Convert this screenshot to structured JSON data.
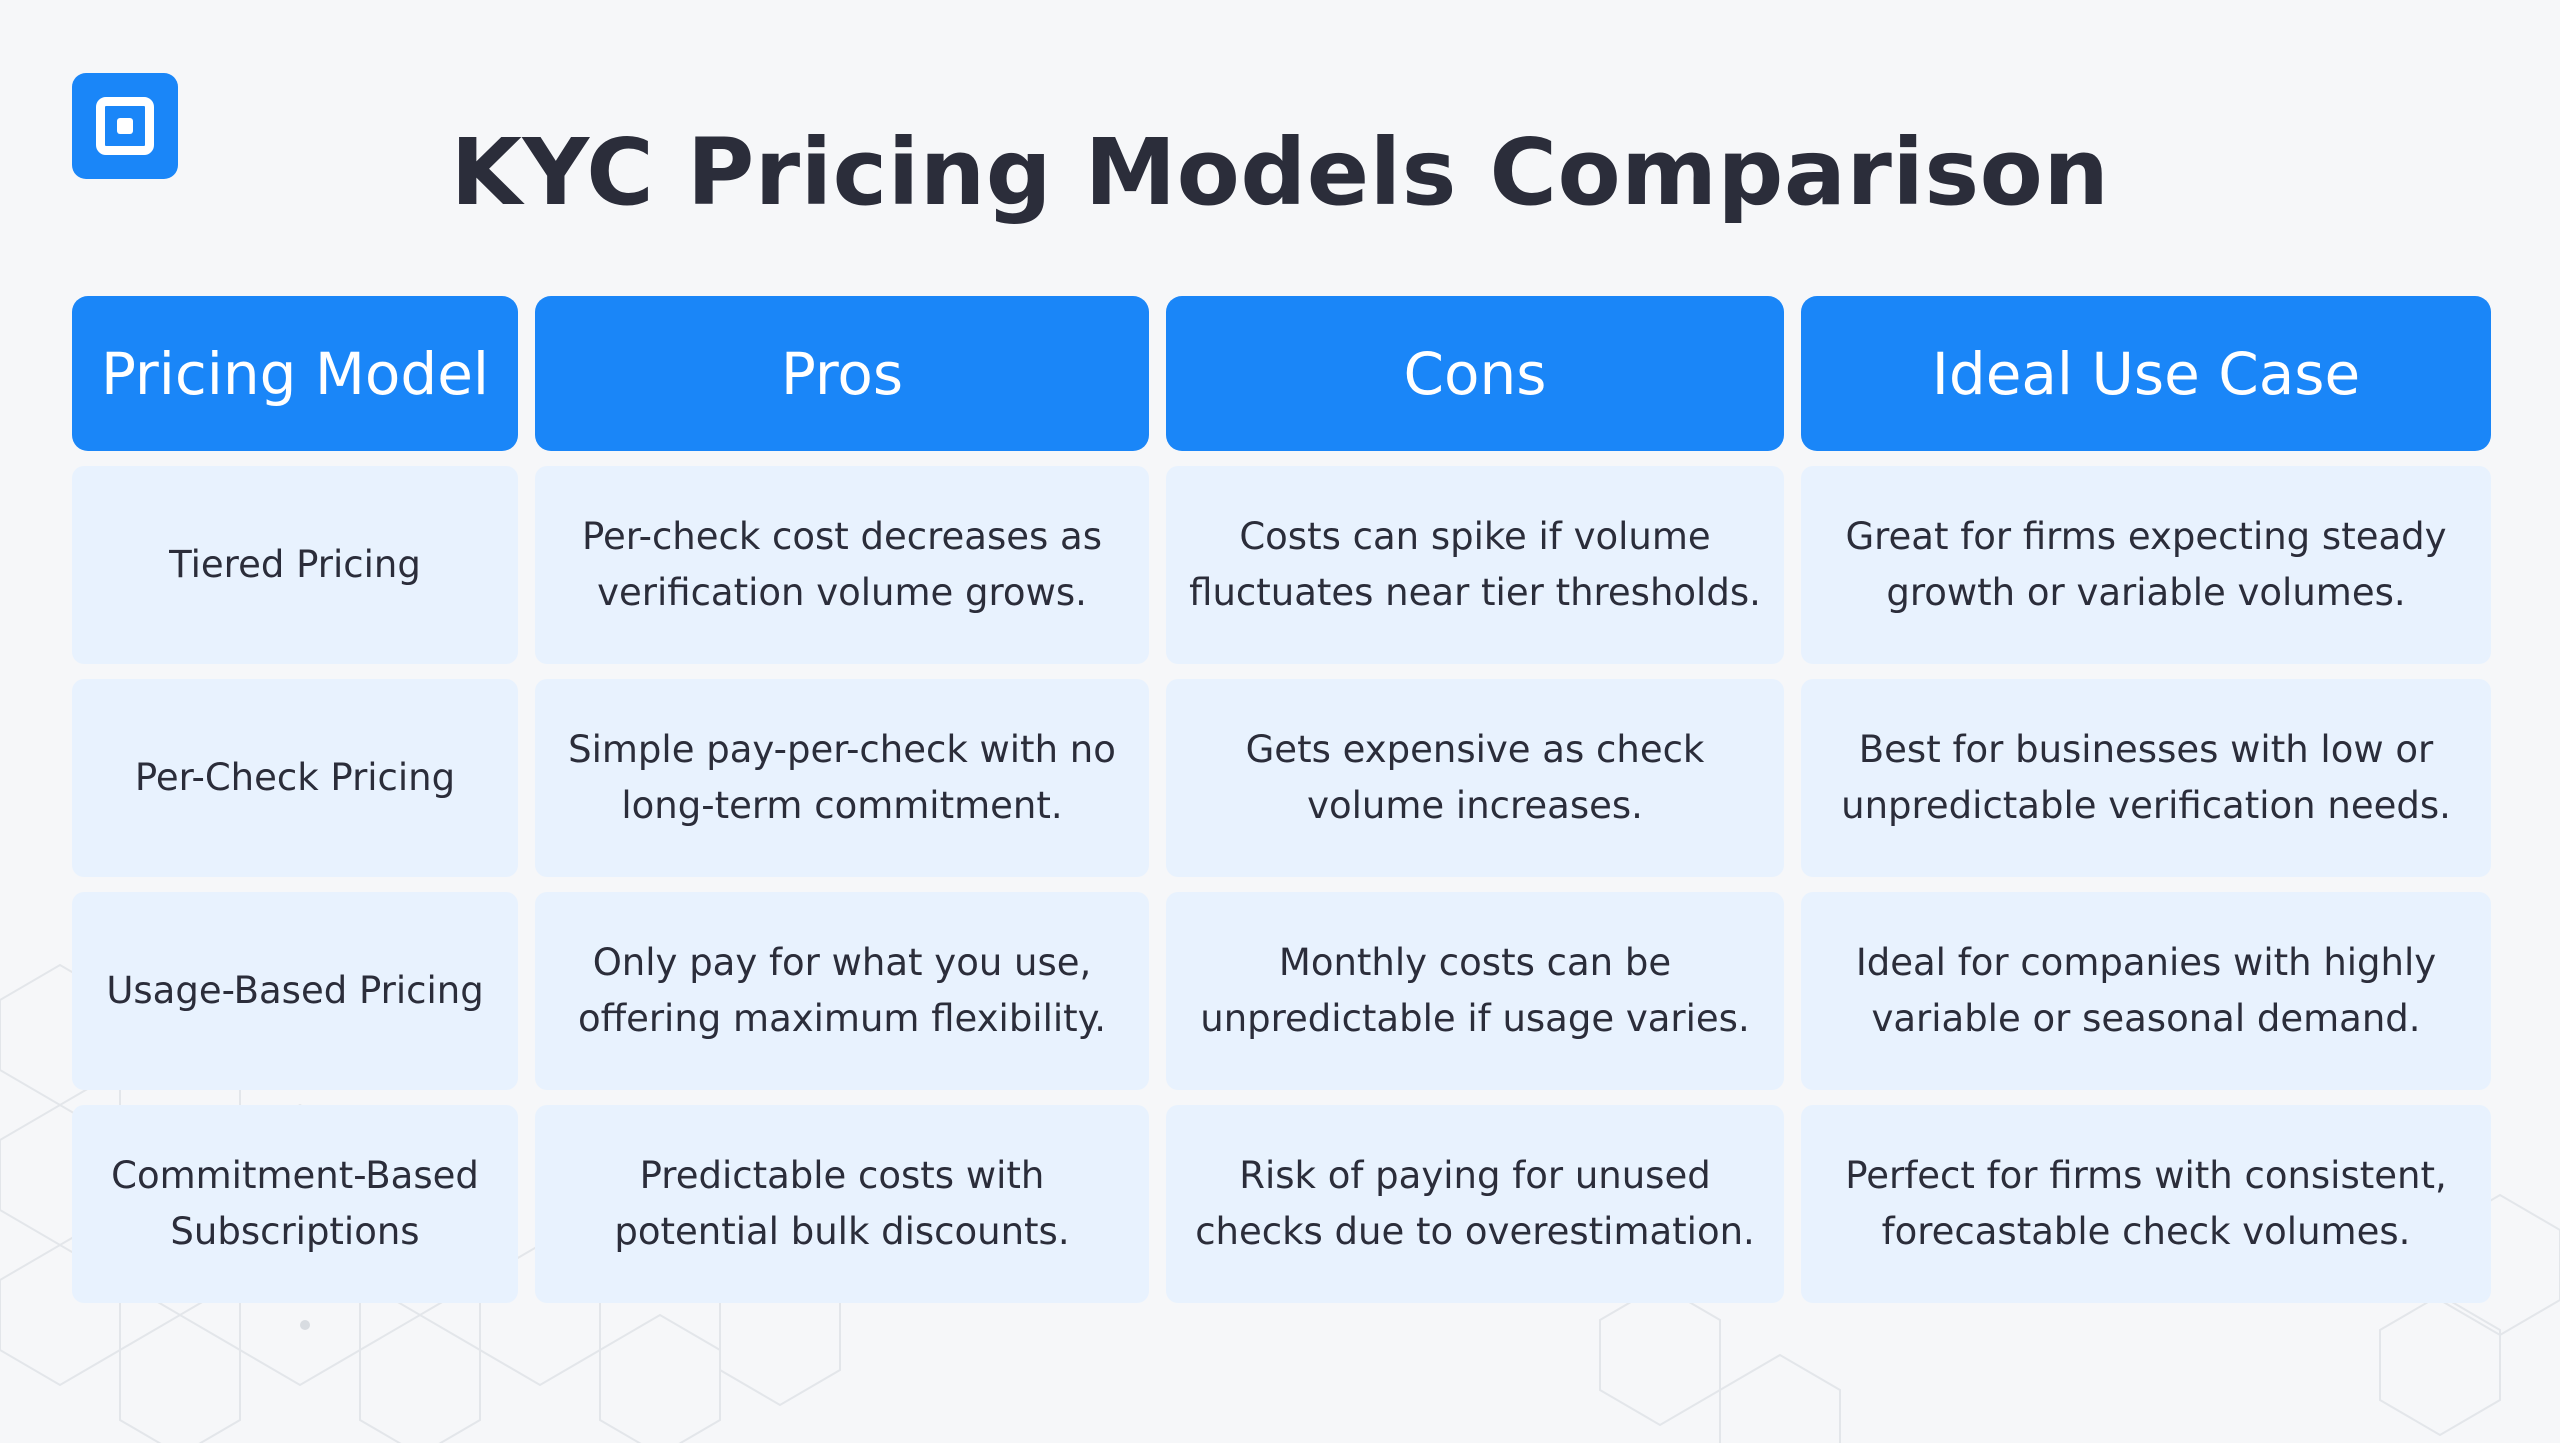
{
  "title": "KYC Pricing Models Comparison",
  "logo_icon": "square-in-square-icon",
  "colors": {
    "accent": "#1a86f8",
    "cell_bg": "#e8f2fe",
    "text": "#2b2d3a",
    "background": "#f6f7f9"
  },
  "table": {
    "headers": [
      "Pricing Model",
      "Pros",
      "Cons",
      "Ideal Use Case"
    ],
    "rows": [
      {
        "model": "Tiered Pricing",
        "pros": "Per-check cost decreases as verification volume grows.",
        "cons": "Costs can spike if volume fluctuates near tier thresholds.",
        "use_case": "Great for firms expecting steady growth or variable volumes."
      },
      {
        "model": "Per-Check Pricing",
        "pros": "Simple pay-per-check with no long-term commitment.",
        "cons": "Gets expensive as check volume increases.",
        "use_case": "Best for businesses with low or unpredictable verification needs."
      },
      {
        "model": "Usage-Based Pricing",
        "pros": "Only pay for what you use, offering maximum flexibility.",
        "cons": "Monthly costs can be unpredictable if usage varies.",
        "use_case": "Ideal for companies with highly variable or seasonal demand."
      },
      {
        "model": "Commitment-Based Subscriptions",
        "pros": "Predictable costs with potential bulk discounts.",
        "cons": "Risk of paying for unused checks due to overestimation.",
        "use_case": "Perfect for firms with consistent, forecastable check volumes."
      }
    ]
  }
}
